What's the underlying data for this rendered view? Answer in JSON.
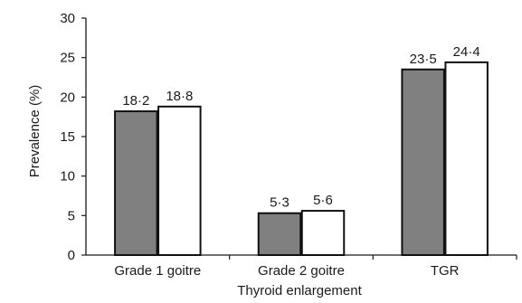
{
  "chart_data": {
    "type": "bar",
    "categories": [
      "Grade 1 goitre",
      "Grade 2 goitre",
      "TGR"
    ],
    "series": [
      {
        "values": [
          18.2,
          5.3,
          23.5
        ],
        "value_labels": [
          "18·2",
          "5·3",
          "23·5"
        ],
        "fill": "#808080"
      },
      {
        "values": [
          18.8,
          5.6,
          24.4
        ],
        "value_labels": [
          "18·8",
          "5·6",
          "24·4"
        ],
        "fill": "#ffffff"
      }
    ],
    "title": "",
    "xlabel": "Thyroid enlargement",
    "ylabel": "Prevalence (%)",
    "ylim": [
      0,
      30
    ],
    "yticks": [
      0,
      5,
      10,
      15,
      20,
      25,
      30
    ],
    "grid": false,
    "legend": "none"
  }
}
